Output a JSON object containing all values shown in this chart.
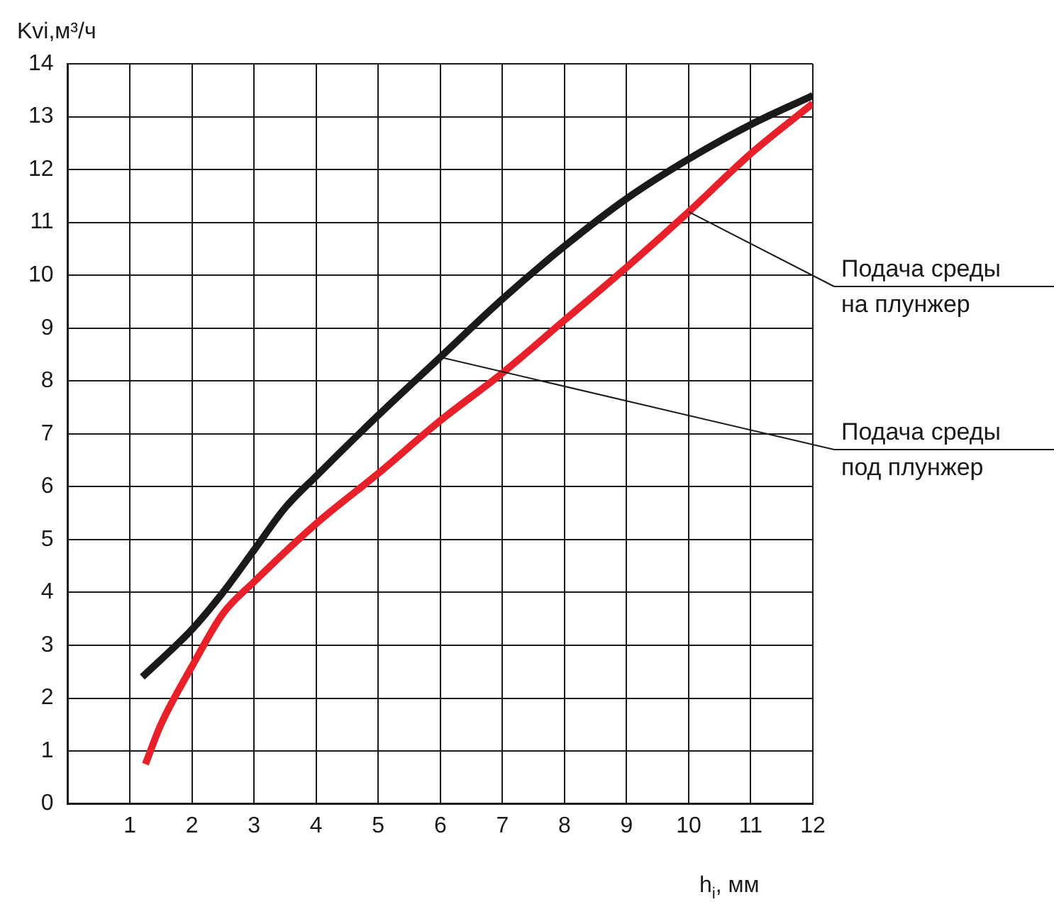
{
  "chart_data": {
    "type": "line",
    "ylabel": "Kvi,м³/ч",
    "xlabel": "h$_{i}$, мм",
    "xlim": [
      0,
      12
    ],
    "ylim": [
      0,
      14
    ],
    "xticks": [
      {
        "value": 0,
        "label": null
      },
      1,
      2,
      3,
      4,
      5,
      6,
      7,
      8,
      9,
      10,
      11,
      12
    ],
    "yticks": [
      0,
      1,
      2,
      3,
      4,
      5,
      6,
      7,
      8,
      9,
      10,
      11,
      12,
      13,
      14
    ],
    "grid": true,
    "legend": false,
    "marker": "none",
    "line_style": "solid",
    "series": [
      {
        "name": "Подача среды под плунжер",
        "color": "#1a1a1a",
        "x": [
          1.2,
          2,
          2.5,
          3,
          3.5,
          4,
          5,
          6,
          7,
          8,
          9,
          10,
          11,
          12
        ],
        "values": [
          2.4,
          3.3,
          4,
          4.8,
          5.6,
          6.2,
          7.35,
          8.45,
          9.55,
          10.55,
          11.45,
          12.2,
          12.85,
          13.4
        ]
      },
      {
        "name": "Подача среды на плунжер",
        "color": "#e8202a",
        "x": [
          1.25,
          1.5,
          2,
          2.5,
          3,
          4,
          5,
          6,
          7,
          8,
          9,
          10,
          11,
          12
        ],
        "values": [
          0.75,
          1.5,
          2.6,
          3.6,
          4.2,
          5.3,
          6.25,
          7.25,
          8.15,
          9.15,
          10.15,
          11.2,
          12.3,
          13.25
        ]
      }
    ]
  }
}
